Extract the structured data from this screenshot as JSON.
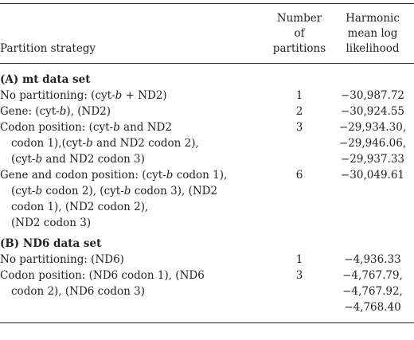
{
  "header": {
    "partition_strategy": "Partition strategy",
    "number_line1": "Number",
    "number_line2": "of",
    "number_line3": "partitions",
    "hml_line1": "Harmonic",
    "hml_line2": "mean log",
    "hml_line3": "likelihood"
  },
  "sections": [
    {
      "title": "(A) mt data set",
      "rows": [
        {
          "lines": [
            "No partitioning: (cyt-b + ND2)"
          ],
          "number": "1",
          "values": [
            "−30,987.72"
          ]
        },
        {
          "lines": [
            "Gene: (cyt-b), (ND2)"
          ],
          "number": "2",
          "values": [
            "−30,924.55"
          ]
        },
        {
          "lines": [
            "Codon position: (cyt-b and ND2",
            "codon 1),(cyt-b and ND2 codon 2),",
            "(cyt-b and ND2 codon 3)"
          ],
          "number": "3",
          "values": [
            "−29,934.30,",
            "−29,946.06,",
            "−29,937.33"
          ]
        },
        {
          "lines": [
            "Gene and codon position: (cyt-b codon 1),",
            "(cyt-b codon 2), (cyt-b codon 3), (ND2",
            "codon 1), (ND2 codon 2),",
            "(ND2 codon 3)"
          ],
          "number": "6",
          "values": [
            "−30,049.61"
          ]
        }
      ]
    },
    {
      "title": "(B) ND6 data set",
      "rows": [
        {
          "lines": [
            "No partitioning: (ND6)"
          ],
          "number": "1",
          "values": [
            "−4,936.33"
          ]
        },
        {
          "lines": [
            "Codon position: (ND6 codon 1), (ND6",
            "codon  2), (ND6 codon 3)"
          ],
          "number": "3",
          "values": [
            "−4,767.79,",
            "−4,767.92,",
            "−4,768.40"
          ]
        }
      ]
    }
  ]
}
